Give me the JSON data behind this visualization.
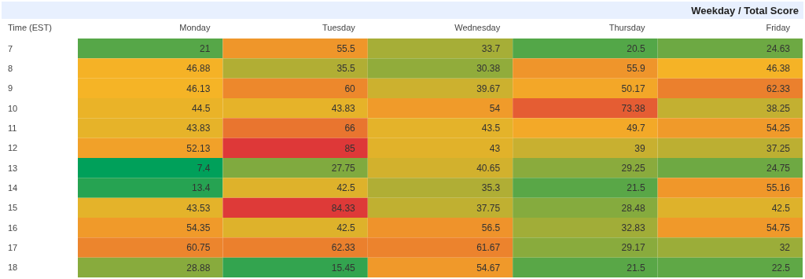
{
  "chart_data": {
    "type": "heatmap",
    "title": "Weekday / Total Score",
    "ylabel": "Time (EST)",
    "categories": [
      "Monday",
      "Tuesday",
      "Wednesday",
      "Thursday",
      "Friday"
    ],
    "y_categories": [
      "7",
      "8",
      "9",
      "10",
      "11",
      "12",
      "13",
      "14",
      "15",
      "16",
      "17",
      "18"
    ],
    "cells": [
      [
        21,
        55.5,
        33.7,
        20.5,
        24.63
      ],
      [
        46.88,
        35.5,
        30.38,
        55.9,
        46.38
      ],
      [
        46.13,
        60,
        39.67,
        50.17,
        62.33
      ],
      [
        44.5,
        43.83,
        54,
        73.38,
        38.25
      ],
      [
        43.83,
        66,
        43.5,
        49.7,
        54.25
      ],
      [
        52.13,
        85,
        43,
        39,
        37.25
      ],
      [
        7.4,
        27.75,
        40.65,
        29.25,
        24.75
      ],
      [
        13.4,
        42.5,
        35.3,
        21.5,
        55.16
      ],
      [
        43.53,
        84.33,
        37.75,
        28.48,
        42.5
      ],
      [
        54.35,
        42.5,
        56.5,
        32.83,
        54.75
      ],
      [
        60.75,
        62.33,
        61.67,
        29.17,
        32
      ],
      [
        28.88,
        15.45,
        54.67,
        21.5,
        22.5
      ]
    ],
    "data_labels": true
  }
}
